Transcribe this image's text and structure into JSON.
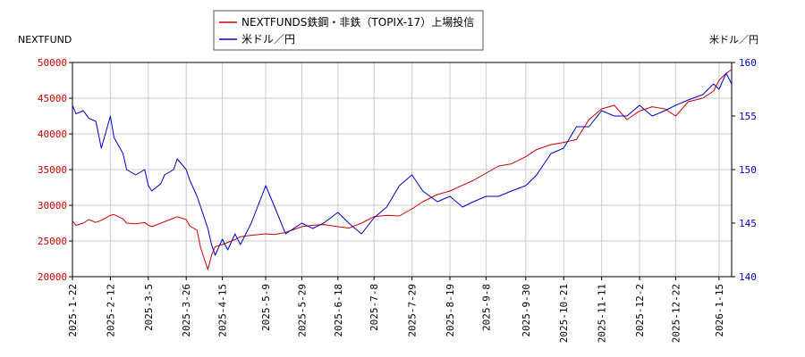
{
  "chart_data": {
    "type": "line",
    "left_axis_label": "NEXTFUND",
    "right_axis_label": "米ドル／円",
    "legend_position": "top-center",
    "grid": true,
    "left_ylim": [
      20000,
      50000
    ],
    "right_ylim": [
      140,
      160
    ],
    "left_ticks": [
      "20000",
      "25000",
      "30000",
      "35000",
      "40000",
      "45000",
      "50000"
    ],
    "right_ticks": [
      "140",
      "145",
      "150",
      "155",
      "160"
    ],
    "x_ticks": [
      "2025-1-22",
      "2025-2-12",
      "2025-3-5",
      "2025-3-26",
      "2025-4-15",
      "2025-5-9",
      "2025-5-29",
      "2025-6-18",
      "2025-7-8",
      "2025-7-29",
      "2025-8-19",
      "2025-9-8",
      "2025-9-30",
      "2025-10-21",
      "2025-11-11",
      "2025-12-2",
      "2025-12-22",
      "2026-1-15"
    ],
    "colors": {
      "left_axis": "#cc0000",
      "right_axis": "#0000cc",
      "grid": "#cccccc"
    },
    "series": [
      {
        "name": "NEXTFUNDS鉄鋼・非鉄（TOPIX-17）上場投信",
        "axis": "left",
        "color": "#cc0000",
        "x": [
          "2025-1-22",
          "2025-1-24",
          "2025-1-28",
          "2025-1-31",
          "2025-2-4",
          "2025-2-7",
          "2025-2-12",
          "2025-2-14",
          "2025-2-19",
          "2025-2-21",
          "2025-2-26",
          "2025-3-3",
          "2025-3-5",
          "2025-3-7",
          "2025-3-12",
          "2025-3-14",
          "2025-3-19",
          "2025-3-21",
          "2025-3-26",
          "2025-3-28",
          "2025-4-1",
          "2025-4-3",
          "2025-4-7",
          "2025-4-9",
          "2025-4-11",
          "2025-4-15",
          "2025-4-18",
          "2025-4-22",
          "2025-4-25",
          "2025-5-1",
          "2025-5-9",
          "2025-5-14",
          "2025-5-20",
          "2025-5-29",
          "2025-6-4",
          "2025-6-10",
          "2025-6-18",
          "2025-6-24",
          "2025-7-1",
          "2025-7-8",
          "2025-7-15",
          "2025-7-22",
          "2025-7-29",
          "2025-8-4",
          "2025-8-12",
          "2025-8-19",
          "2025-8-26",
          "2025-9-1",
          "2025-9-8",
          "2025-9-15",
          "2025-9-22",
          "2025-9-30",
          "2025-10-6",
          "2025-10-14",
          "2025-10-21",
          "2025-10-28",
          "2025-11-4",
          "2025-11-11",
          "2025-11-18",
          "2025-11-25",
          "2025-12-2",
          "2025-12-9",
          "2025-12-16",
          "2025-12-22",
          "2025-12-29",
          "2026-1-6",
          "2026-1-12",
          "2026-1-15",
          "2026-1-19",
          "2026-1-22"
        ],
        "values": [
          27800,
          27200,
          27500,
          28000,
          27600,
          27900,
          28600,
          28700,
          28100,
          27500,
          27400,
          27600,
          27200,
          27000,
          27500,
          27700,
          28200,
          28400,
          28000,
          27100,
          26500,
          24000,
          21000,
          23000,
          24200,
          24500,
          24800,
          25200,
          25600,
          25800,
          26000,
          25900,
          26200,
          27000,
          27200,
          27300,
          27000,
          26800,
          27500,
          28400,
          28600,
          28500,
          29500,
          30500,
          31500,
          32000,
          32800,
          33500,
          34500,
          35500,
          35800,
          36800,
          37800,
          38500,
          38800,
          39200,
          42000,
          43500,
          44000,
          42000,
          43200,
          43800,
          43500,
          42500,
          44500,
          45000,
          46000,
          47500,
          48500,
          49000
        ]
      },
      {
        "name": "米ドル／円",
        "axis": "right",
        "color": "#0000cc",
        "x": [
          "2025-1-22",
          "2025-1-24",
          "2025-1-28",
          "2025-1-31",
          "2025-2-4",
          "2025-2-7",
          "2025-2-12",
          "2025-2-14",
          "2025-2-19",
          "2025-2-21",
          "2025-2-26",
          "2025-3-3",
          "2025-3-5",
          "2025-3-7",
          "2025-3-12",
          "2025-3-14",
          "2025-3-19",
          "2025-3-21",
          "2025-3-26",
          "2025-3-28",
          "2025-4-1",
          "2025-4-3",
          "2025-4-7",
          "2025-4-9",
          "2025-4-11",
          "2025-4-15",
          "2025-4-18",
          "2025-4-22",
          "2025-4-25",
          "2025-5-1",
          "2025-5-9",
          "2025-5-14",
          "2025-5-20",
          "2025-5-29",
          "2025-6-4",
          "2025-6-10",
          "2025-6-18",
          "2025-6-24",
          "2025-7-1",
          "2025-7-8",
          "2025-7-15",
          "2025-7-22",
          "2025-7-29",
          "2025-8-4",
          "2025-8-12",
          "2025-8-19",
          "2025-8-26",
          "2025-9-1",
          "2025-9-8",
          "2025-9-15",
          "2025-9-22",
          "2025-9-30",
          "2025-10-6",
          "2025-10-14",
          "2025-10-21",
          "2025-10-28",
          "2025-11-4",
          "2025-11-11",
          "2025-11-18",
          "2025-11-25",
          "2025-12-2",
          "2025-12-9",
          "2025-12-16",
          "2025-12-22",
          "2025-12-29",
          "2026-1-6",
          "2026-1-12",
          "2026-1-15",
          "2026-1-19",
          "2026-1-22"
        ],
        "values": [
          156.0,
          155.2,
          155.5,
          154.8,
          154.5,
          152.0,
          155.0,
          153.0,
          151.5,
          150.0,
          149.5,
          150.0,
          148.5,
          148.0,
          148.7,
          149.5,
          150.0,
          151.0,
          150.0,
          149.0,
          147.5,
          146.5,
          144.5,
          143.0,
          142.0,
          143.5,
          142.5,
          144.0,
          143.0,
          145.0,
          148.5,
          146.5,
          144.0,
          145.0,
          144.5,
          145.0,
          146.0,
          145.0,
          144.0,
          145.5,
          146.5,
          148.5,
          149.5,
          148.0,
          147.0,
          147.5,
          146.5,
          147.0,
          147.5,
          147.5,
          148.0,
          148.5,
          149.5,
          151.5,
          152.0,
          154.0,
          154.0,
          155.5,
          155.0,
          155.0,
          156.0,
          155.0,
          155.5,
          156.0,
          156.5,
          157.0,
          158.0,
          157.5,
          159.0,
          158.0
        ]
      }
    ]
  }
}
